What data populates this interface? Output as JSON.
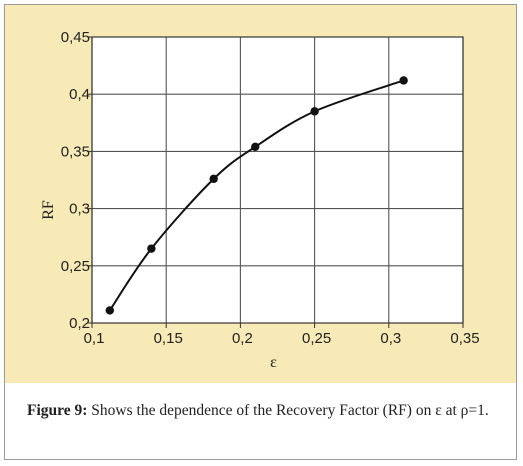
{
  "chart_data": {
    "type": "line",
    "xlabel": "ε",
    "ylabel": "RF",
    "xlim": [
      0.1,
      0.35
    ],
    "ylim": [
      0.2,
      0.45
    ],
    "xticks": [
      0.1,
      0.15,
      0.2,
      0.25,
      0.3,
      0.35
    ],
    "yticks": [
      0.2,
      0.25,
      0.3,
      0.35,
      0.4,
      0.45
    ],
    "xtick_labels": [
      "0,1",
      "0,15",
      "0,2",
      "0,25",
      "0,3",
      "0,35"
    ],
    "ytick_labels": [
      "0,2",
      "0,25",
      "0,3",
      "0,35",
      "0,4",
      "0,45"
    ],
    "grid": true,
    "series": [
      {
        "x": [
          0.112,
          0.14,
          0.182,
          0.21,
          0.25,
          0.31
        ],
        "y": [
          0.211,
          0.265,
          0.326,
          0.354,
          0.385,
          0.412
        ],
        "marker": "circle",
        "color": "#111111"
      }
    ],
    "background": "#f8eab6",
    "grid_color": "#555555"
  },
  "caption": {
    "label": "Figure 9:",
    "text": " Shows the dependence of the Recovery Factor (RF) on ε at ρ=1."
  }
}
